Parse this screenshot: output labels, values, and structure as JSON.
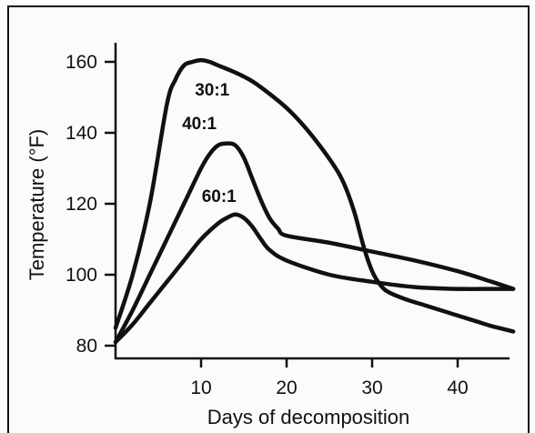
{
  "chart_data": {
    "type": "line",
    "title": "",
    "xlabel": "Days of decomposition",
    "ylabel": "Temperature (°F)",
    "xlim": [
      0,
      47
    ],
    "ylim": [
      80,
      165
    ],
    "xticks": [
      10,
      20,
      30,
      40
    ],
    "yticks": [
      80,
      100,
      120,
      140,
      160
    ],
    "grid": false,
    "series": [
      {
        "name": "30:1",
        "x": [
          0,
          2,
          4,
          6,
          7,
          8,
          9,
          10,
          11,
          12,
          14,
          16,
          18,
          20,
          22,
          24,
          26,
          27,
          28,
          29,
          30,
          31,
          32,
          34,
          36,
          38,
          40,
          42,
          44,
          46.5
        ],
        "y": [
          85,
          100,
          120,
          148,
          155,
          159,
          160,
          160.5,
          160,
          159,
          157,
          154.5,
          151,
          147,
          142,
          136,
          129,
          124,
          117,
          108,
          101,
          97,
          95,
          93,
          91.5,
          90,
          88.5,
          87,
          85.5,
          84
        ]
      },
      {
        "name": "40:1",
        "x": [
          0,
          2,
          4,
          6,
          8,
          10,
          11,
          12,
          13,
          14,
          15,
          16,
          17,
          18,
          19,
          20,
          25,
          30,
          35,
          40,
          44,
          46.5
        ],
        "y": [
          81,
          90,
          100,
          110,
          120,
          130,
          134,
          136.5,
          137,
          136.5,
          133,
          127,
          121,
          116,
          113,
          111,
          109,
          106.5,
          104,
          101,
          98,
          96
        ]
      },
      {
        "name": "60:1",
        "x": [
          0,
          2,
          4,
          6,
          8,
          10,
          12,
          13,
          14,
          15,
          16,
          17,
          18,
          20,
          25,
          30,
          35,
          40,
          44,
          46.5
        ],
        "y": [
          81,
          86,
          92,
          98,
          104,
          110,
          114.5,
          116,
          117,
          116,
          113.5,
          110,
          107,
          104,
          100,
          98,
          96.5,
          96,
          96,
          96
        ]
      }
    ],
    "annotations": [
      "30:1",
      "40:1",
      "60:1"
    ]
  }
}
